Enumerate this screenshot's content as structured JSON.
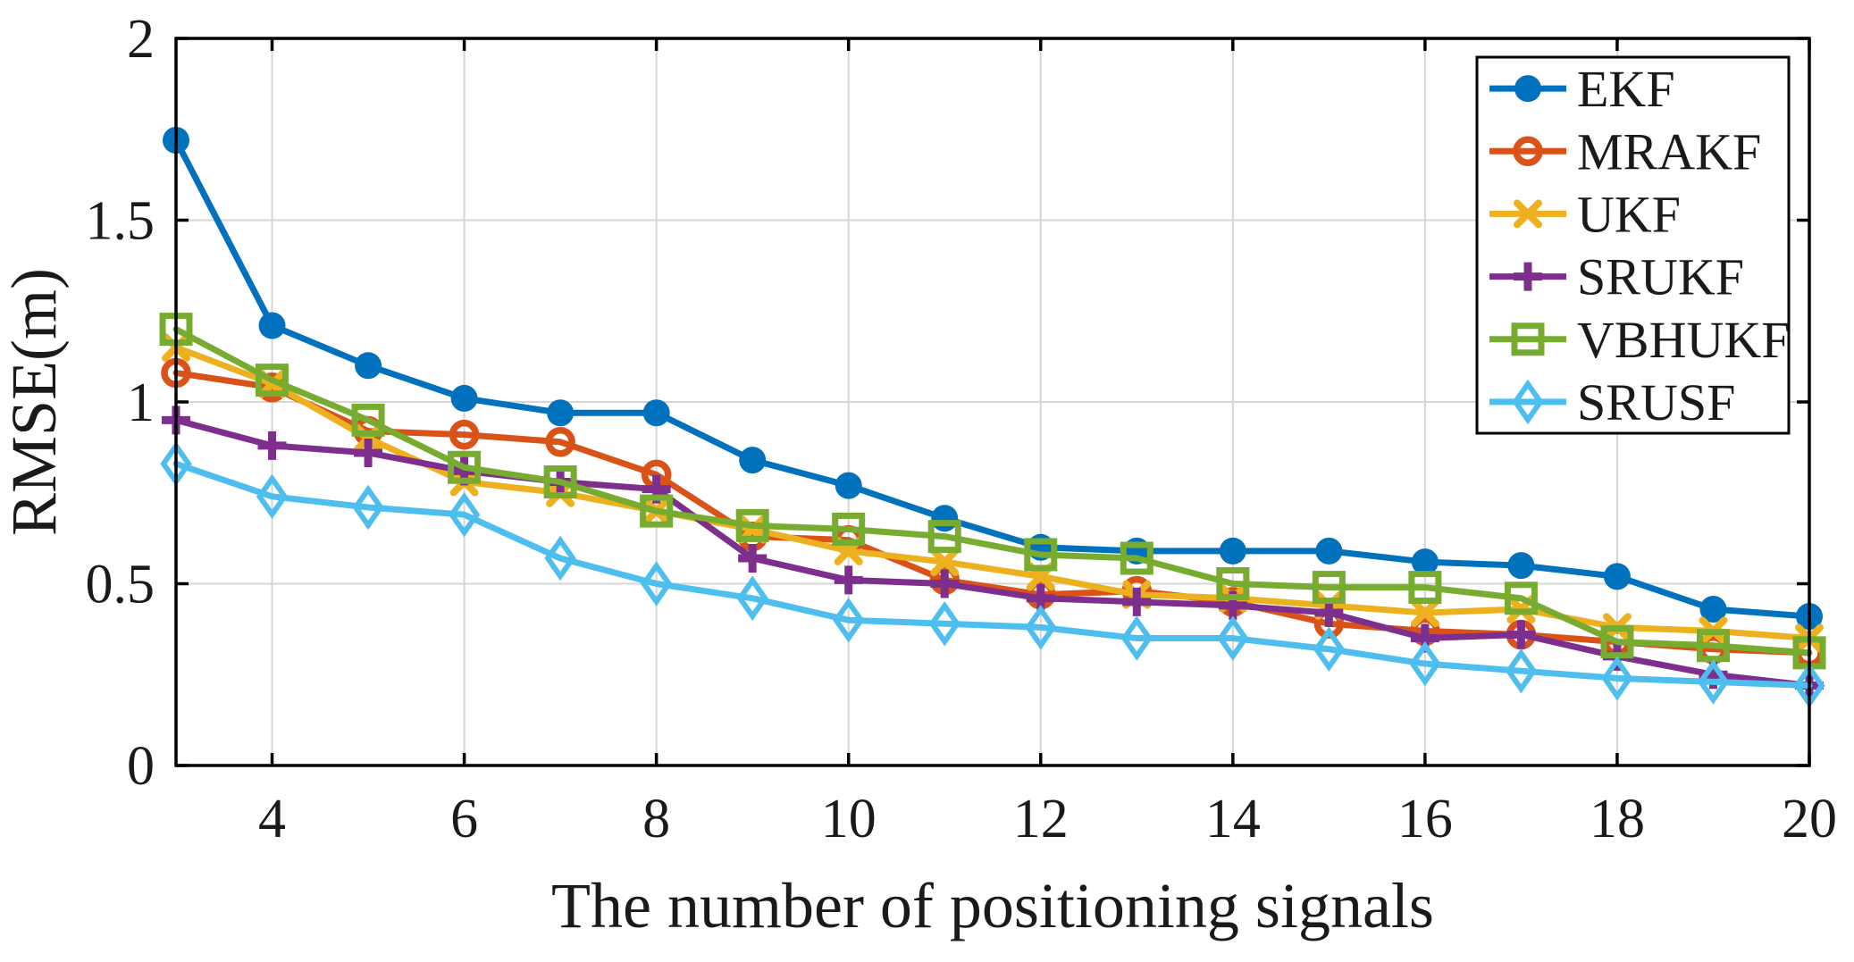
{
  "figure": {
    "background": "#ffffff",
    "axis_color": "#000000",
    "grid_color": "#d6d6d6",
    "text_color": "#1a1a1a"
  },
  "chart_data": {
    "type": "line",
    "title": "",
    "xlabel": "The number of positioning signals",
    "ylabel": "RMSE(m)",
    "xlim": [
      3,
      20
    ],
    "ylim": [
      0,
      2
    ],
    "xticks": [
      4,
      6,
      8,
      10,
      12,
      14,
      16,
      18,
      20
    ],
    "yticks": [
      0,
      0.5,
      1,
      1.5,
      2
    ],
    "ytick_labels": [
      "0",
      "0.5",
      "1",
      "1.5",
      "2"
    ],
    "grid": true,
    "legend_position": "top-right",
    "x": [
      3,
      4,
      5,
      6,
      7,
      8,
      9,
      10,
      11,
      12,
      13,
      14,
      15,
      16,
      17,
      18,
      19,
      20
    ],
    "series": [
      {
        "name": "EKF",
        "color": "#0072BD",
        "marker": "filled-circle",
        "values": [
          1.72,
          1.21,
          1.1,
          1.01,
          0.97,
          0.97,
          0.84,
          0.77,
          0.68,
          0.6,
          0.59,
          0.59,
          0.59,
          0.56,
          0.55,
          0.52,
          0.43,
          0.41
        ]
      },
      {
        "name": "MRAKF",
        "color": "#D95319",
        "marker": "open-circle",
        "values": [
          1.08,
          1.04,
          0.92,
          0.91,
          0.89,
          0.8,
          0.63,
          0.62,
          0.51,
          0.47,
          0.48,
          0.45,
          0.39,
          0.37,
          0.36,
          0.34,
          0.32,
          0.31
        ]
      },
      {
        "name": "UKF",
        "color": "#EDB120",
        "marker": "x",
        "values": [
          1.15,
          1.05,
          0.9,
          0.78,
          0.75,
          0.7,
          0.65,
          0.59,
          0.56,
          0.52,
          0.47,
          0.46,
          0.44,
          0.42,
          0.43,
          0.38,
          0.37,
          0.35
        ]
      },
      {
        "name": "SRUKF",
        "color": "#7E2F8E",
        "marker": "plus",
        "values": [
          0.95,
          0.88,
          0.86,
          0.81,
          0.78,
          0.76,
          0.57,
          0.51,
          0.5,
          0.46,
          0.45,
          0.44,
          0.42,
          0.35,
          0.36,
          0.3,
          0.25,
          0.22
        ]
      },
      {
        "name": "VBHUKF",
        "color": "#77AC30",
        "marker": "open-square",
        "values": [
          1.2,
          1.06,
          0.95,
          0.82,
          0.78,
          0.7,
          0.66,
          0.65,
          0.63,
          0.58,
          0.57,
          0.5,
          0.49,
          0.49,
          0.46,
          0.34,
          0.33,
          0.31
        ]
      },
      {
        "name": "SRUSF",
        "color": "#4DBEEE",
        "marker": "open-diamond",
        "values": [
          0.83,
          0.74,
          0.71,
          0.69,
          0.57,
          0.5,
          0.46,
          0.4,
          0.39,
          0.38,
          0.35,
          0.35,
          0.32,
          0.28,
          0.26,
          0.24,
          0.23,
          0.22
        ]
      }
    ]
  }
}
